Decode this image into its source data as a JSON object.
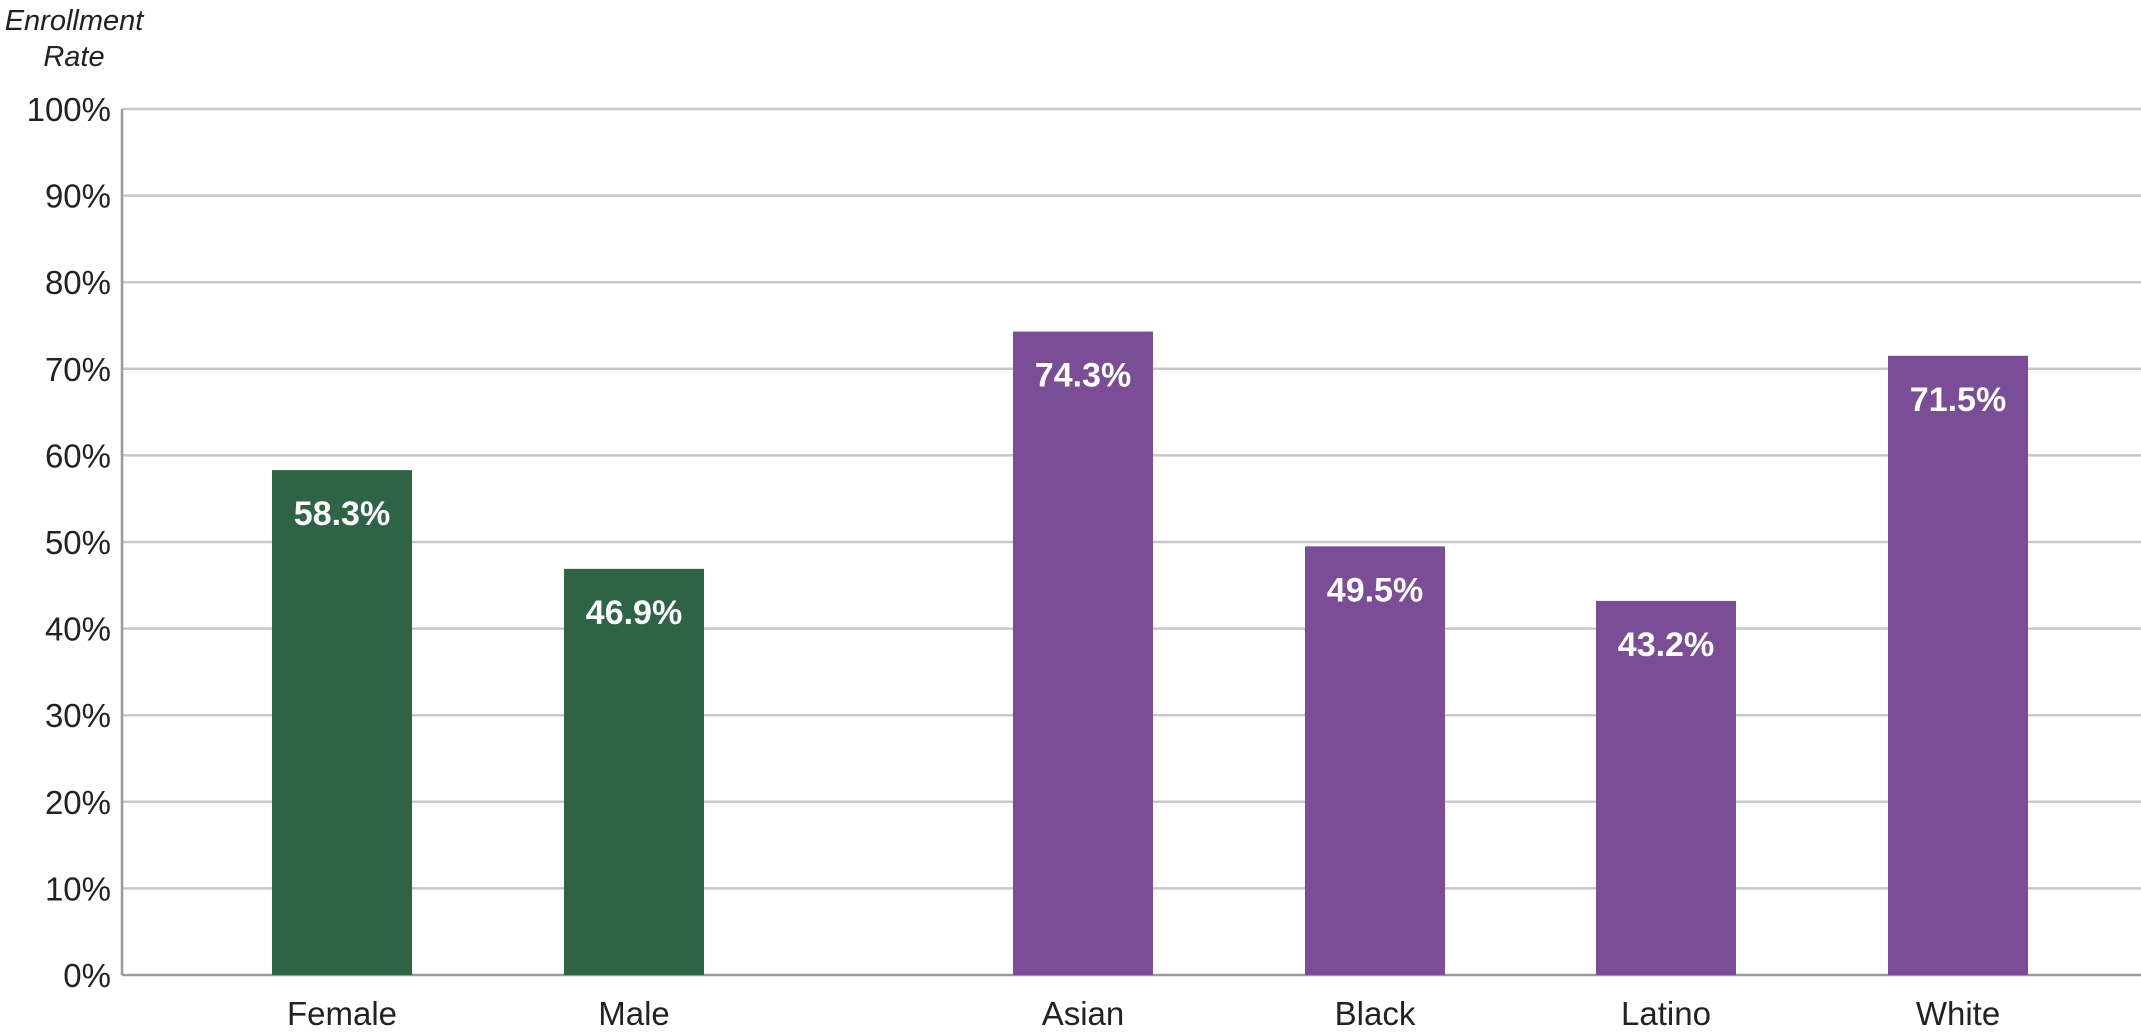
{
  "chart_data": {
    "type": "bar",
    "title": "",
    "xlabel": "",
    "ylabel": "Enrollment Rate",
    "ylabel_lines": [
      "Enrollment",
      "Rate"
    ],
    "ylim": [
      0,
      100
    ],
    "y_ticks": [
      0,
      10,
      20,
      30,
      40,
      50,
      60,
      70,
      80,
      90,
      100
    ],
    "y_tick_labels": [
      "0%",
      "10%",
      "20%",
      "30%",
      "40%",
      "50%",
      "60%",
      "70%",
      "80%",
      "90%",
      "100%"
    ],
    "grid": true,
    "legend": "none",
    "categories": [
      "Female",
      "Male",
      "Asian",
      "Black",
      "Latino",
      "White"
    ],
    "values": [
      58.3,
      46.9,
      74.3,
      49.5,
      43.2,
      71.5
    ],
    "value_labels": [
      "58.3%",
      "46.9%",
      "74.3%",
      "49.5%",
      "43.2%",
      "71.5%"
    ],
    "groups": [
      {
        "categories": [
          "Female",
          "Male"
        ],
        "color": "#2e6446"
      },
      {
        "categories": [
          "Asian",
          "Black",
          "Latino",
          "White"
        ],
        "color": "#7b4d97"
      }
    ]
  }
}
